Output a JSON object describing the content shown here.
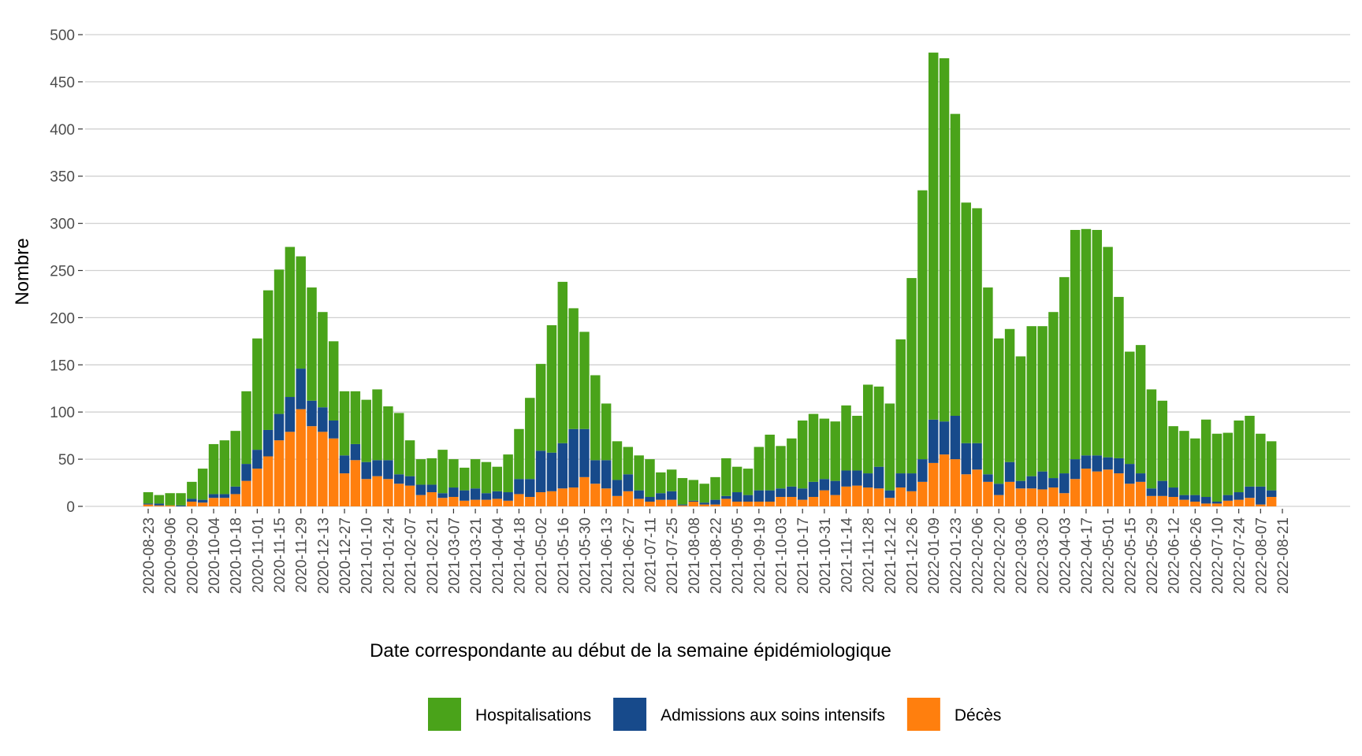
{
  "chart_data": {
    "type": "stacked_bar",
    "x_label": "Date correspondante au début de la semaine épidémiologique",
    "y_label": "Nombre",
    "ylim": [
      0,
      500
    ],
    "yticks": [
      0,
      50,
      100,
      150,
      200,
      250,
      300,
      350,
      400,
      450,
      500
    ],
    "grid": true,
    "legend": "bottom",
    "categories": [
      "2020-08-23",
      null,
      "2020-09-06",
      null,
      "2020-09-20",
      null,
      "2020-10-04",
      null,
      "2020-10-18",
      null,
      "2020-11-01",
      null,
      "2020-11-15",
      null,
      "2020-11-29",
      null,
      "2020-12-13",
      null,
      "2020-12-27",
      null,
      "2021-01-10",
      null,
      "2021-01-24",
      null,
      "2021-02-07",
      null,
      "2021-02-21",
      null,
      "2021-03-07",
      null,
      "2021-03-21",
      null,
      "2021-04-04",
      null,
      "2021-04-18",
      null,
      "2021-05-02",
      null,
      "2021-05-16",
      null,
      "2021-05-30",
      null,
      "2021-06-13",
      null,
      "2021-06-27",
      null,
      "2021-07-11",
      null,
      "2021-07-25",
      null,
      "2021-08-08",
      null,
      "2021-08-22",
      null,
      "2021-09-05",
      null,
      "2021-09-19",
      null,
      "2021-10-03",
      null,
      "2021-10-17",
      null,
      "2021-10-31",
      null,
      "2021-11-14",
      null,
      "2021-11-28",
      null,
      "2021-12-12",
      null,
      "2021-12-26",
      null,
      "2022-01-09",
      null,
      "2022-01-23",
      null,
      "2022-02-06",
      null,
      "2022-02-20",
      null,
      "2022-03-06",
      null,
      "2022-03-20",
      null,
      "2022-04-03",
      null,
      "2022-04-17",
      null,
      "2022-05-01",
      null,
      "2022-05-15",
      null,
      "2022-05-29",
      null,
      "2022-06-12",
      null,
      "2022-06-26",
      null,
      "2022-07-10",
      null,
      "2022-07-24",
      null,
      "2022-08-07",
      null,
      "2022-08-21"
    ],
    "series": [
      {
        "name": "Hospitalisations",
        "color": "#4aa31a",
        "values": [
          12,
          9,
          13,
          13,
          18,
          33,
          53,
          57,
          59,
          77,
          118,
          148,
          153,
          159,
          119,
          120,
          101,
          84,
          68,
          56,
          66,
          75,
          57,
          65,
          38,
          27,
          28,
          46,
          30,
          24,
          31,
          33,
          26,
          40,
          53,
          86,
          92,
          135,
          171,
          128,
          103,
          90,
          60,
          41,
          29,
          37,
          40,
          22,
          23,
          28,
          22,
          20,
          24,
          40,
          27,
          28,
          46,
          59,
          45,
          51,
          72,
          72,
          64,
          63,
          69,
          58,
          94,
          85,
          92,
          142,
          207,
          285,
          389,
          385,
          320,
          255,
          249,
          198,
          154,
          141,
          132,
          159,
          154,
          176,
          208,
          243,
          240,
          239,
          223,
          171,
          119,
          136,
          105,
          85,
          65,
          68,
          60,
          82,
          72,
          66,
          76,
          75,
          56,
          52,
          null
        ]
      },
      {
        "name": "Admissions aux soins intensifs",
        "color": "#174a8b",
        "values": [
          1,
          2,
          0,
          1,
          3,
          3,
          4,
          4,
          8,
          18,
          20,
          28,
          28,
          37,
          43,
          27,
          26,
          19,
          19,
          17,
          18,
          17,
          20,
          10,
          10,
          11,
          8,
          5,
          10,
          11,
          12,
          7,
          8,
          9,
          16,
          19,
          44,
          41,
          48,
          62,
          51,
          25,
          30,
          17,
          18,
          9,
          5,
          7,
          9,
          1,
          1,
          2,
          5,
          3,
          10,
          7,
          12,
          12,
          9,
          11,
          12,
          16,
          12,
          15,
          17,
          16,
          15,
          23,
          8,
          15,
          19,
          24,
          46,
          35,
          46,
          33,
          28,
          8,
          12,
          21,
          8,
          13,
          19,
          10,
          21,
          21,
          14,
          17,
          13,
          16,
          21,
          9,
          8,
          16,
          10,
          5,
          7,
          7,
          2,
          6,
          8,
          12,
          19,
          7,
          null
        ]
      },
      {
        "name": "Décès",
        "color": "#ff7f0e",
        "values": [
          2,
          1,
          1,
          0,
          5,
          4,
          9,
          9,
          13,
          27,
          40,
          53,
          70,
          79,
          103,
          85,
          79,
          72,
          35,
          49,
          29,
          32,
          29,
          24,
          22,
          12,
          15,
          9,
          10,
          6,
          7,
          7,
          8,
          6,
          13,
          10,
          15,
          16,
          19,
          20,
          31,
          24,
          19,
          11,
          16,
          8,
          5,
          7,
          7,
          1,
          5,
          2,
          2,
          8,
          5,
          5,
          5,
          5,
          10,
          10,
          7,
          10,
          17,
          12,
          21,
          22,
          20,
          19,
          9,
          20,
          16,
          26,
          46,
          55,
          50,
          34,
          39,
          26,
          12,
          26,
          19,
          19,
          18,
          20,
          14,
          29,
          40,
          37,
          39,
          35,
          24,
          26,
          11,
          11,
          10,
          7,
          5,
          3,
          3,
          6,
          7,
          9,
          2,
          10,
          null
        ]
      }
    ]
  }
}
